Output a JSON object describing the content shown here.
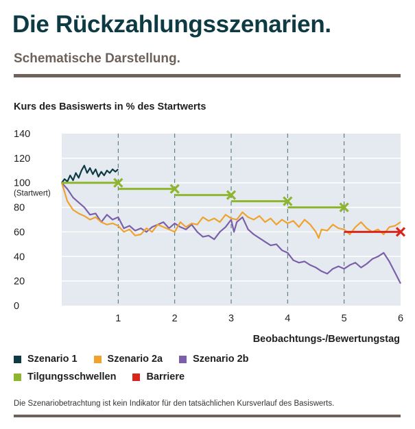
{
  "header": {
    "title": "Die Rückzahlungsszenarien.",
    "subtitle": "Schematische Darstellung."
  },
  "footnote": "Die Szenariobetrachtung ist kein Indikator für den tatsächlichen Kursverlauf des Basiswerts.",
  "chart_data": {
    "type": "line",
    "ylabel": "Kurs des Basiswerts in % des Startwerts",
    "xlabel": "Beobachtungs-/Bewertungstag",
    "xlim": [
      0,
      6
    ],
    "ylim": [
      0,
      140
    ],
    "x_ticks": [
      1,
      2,
      3,
      4,
      5,
      6
    ],
    "y_ticks": [
      0,
      20,
      40,
      60,
      80,
      100,
      120,
      140
    ],
    "start_annotation": "(Startwert)",
    "grid": {
      "horizontal": true,
      "vertical_dashed": true
    },
    "background": "#e4eaef",
    "colors": {
      "szenario1": "#0e3b43",
      "szenario2a": "#f0a22e",
      "szenario2b": "#7b5fa8",
      "tilgung": "#8db52d",
      "barriere": "#d9261c"
    },
    "series": [
      {
        "key": "szenario1",
        "name": "Szenario 1",
        "points": [
          [
            0,
            100
          ],
          [
            0.05,
            103
          ],
          [
            0.1,
            101
          ],
          [
            0.15,
            106
          ],
          [
            0.2,
            102
          ],
          [
            0.25,
            108
          ],
          [
            0.3,
            104
          ],
          [
            0.35,
            110
          ],
          [
            0.4,
            114
          ],
          [
            0.45,
            108
          ],
          [
            0.5,
            112
          ],
          [
            0.55,
            107
          ],
          [
            0.6,
            111
          ],
          [
            0.65,
            105
          ],
          [
            0.7,
            109
          ],
          [
            0.75,
            106
          ],
          [
            0.8,
            110
          ],
          [
            0.85,
            108
          ],
          [
            0.9,
            111
          ],
          [
            0.95,
            109
          ],
          [
            1,
            111
          ]
        ]
      },
      {
        "key": "szenario2a",
        "name": "Szenario 2a",
        "points": [
          [
            0,
            100
          ],
          [
            0.1,
            85
          ],
          [
            0.2,
            78
          ],
          [
            0.3,
            75
          ],
          [
            0.4,
            73
          ],
          [
            0.5,
            70
          ],
          [
            0.6,
            72
          ],
          [
            0.7,
            68
          ],
          [
            0.8,
            66
          ],
          [
            0.9,
            67
          ],
          [
            1,
            65
          ],
          [
            1.1,
            60
          ],
          [
            1.2,
            62
          ],
          [
            1.3,
            57
          ],
          [
            1.4,
            58
          ],
          [
            1.5,
            63
          ],
          [
            1.6,
            60
          ],
          [
            1.7,
            66
          ],
          [
            1.8,
            64
          ],
          [
            1.9,
            62
          ],
          [
            2,
            60
          ],
          [
            2.1,
            68
          ],
          [
            2.2,
            64
          ],
          [
            2.3,
            67
          ],
          [
            2.4,
            66
          ],
          [
            2.5,
            72
          ],
          [
            2.6,
            69
          ],
          [
            2.7,
            71
          ],
          [
            2.8,
            68
          ],
          [
            2.9,
            74
          ],
          [
            3,
            71
          ],
          [
            3.1,
            70
          ],
          [
            3.2,
            76
          ],
          [
            3.3,
            72
          ],
          [
            3.4,
            70
          ],
          [
            3.5,
            73
          ],
          [
            3.6,
            68
          ],
          [
            3.7,
            71
          ],
          [
            3.8,
            66
          ],
          [
            3.9,
            70
          ],
          [
            4,
            67
          ],
          [
            4.1,
            69
          ],
          [
            4.2,
            64
          ],
          [
            4.3,
            70
          ],
          [
            4.4,
            66
          ],
          [
            4.5,
            60
          ],
          [
            4.55,
            55
          ],
          [
            4.6,
            62
          ],
          [
            4.7,
            61
          ],
          [
            4.8,
            66
          ],
          [
            4.9,
            63
          ],
          [
            5,
            62
          ],
          [
            5.1,
            58
          ],
          [
            5.2,
            64
          ],
          [
            5.3,
            68
          ],
          [
            5.4,
            63
          ],
          [
            5.5,
            60
          ],
          [
            5.6,
            62
          ],
          [
            5.7,
            58
          ],
          [
            5.8,
            64
          ],
          [
            5.9,
            65
          ],
          [
            6,
            68
          ]
        ]
      },
      {
        "key": "szenario2b",
        "name": "Szenario 2b",
        "points": [
          [
            0,
            100
          ],
          [
            0.1,
            95
          ],
          [
            0.2,
            88
          ],
          [
            0.3,
            84
          ],
          [
            0.4,
            80
          ],
          [
            0.5,
            74
          ],
          [
            0.6,
            75
          ],
          [
            0.7,
            68
          ],
          [
            0.8,
            74
          ],
          [
            0.9,
            70
          ],
          [
            1,
            72
          ],
          [
            1.1,
            63
          ],
          [
            1.2,
            65
          ],
          [
            1.3,
            61
          ],
          [
            1.4,
            63
          ],
          [
            1.5,
            60
          ],
          [
            1.6,
            64
          ],
          [
            1.7,
            66
          ],
          [
            1.8,
            68
          ],
          [
            1.9,
            63
          ],
          [
            2,
            67
          ],
          [
            2.1,
            64
          ],
          [
            2.2,
            62
          ],
          [
            2.3,
            66
          ],
          [
            2.4,
            60
          ],
          [
            2.5,
            56
          ],
          [
            2.6,
            57
          ],
          [
            2.7,
            54
          ],
          [
            2.8,
            60
          ],
          [
            2.9,
            64
          ],
          [
            3,
            70
          ],
          [
            3.05,
            60
          ],
          [
            3.1,
            68
          ],
          [
            3.2,
            72
          ],
          [
            3.3,
            62
          ],
          [
            3.4,
            58
          ],
          [
            3.5,
            55
          ],
          [
            3.6,
            52
          ],
          [
            3.7,
            49
          ],
          [
            3.8,
            50
          ],
          [
            3.9,
            45
          ],
          [
            4,
            43
          ],
          [
            4.1,
            37
          ],
          [
            4.2,
            35
          ],
          [
            4.3,
            36
          ],
          [
            4.4,
            33
          ],
          [
            4.5,
            31
          ],
          [
            4.6,
            28
          ],
          [
            4.7,
            26
          ],
          [
            4.8,
            30
          ],
          [
            4.9,
            32
          ],
          [
            5,
            30
          ],
          [
            5.1,
            33
          ],
          [
            5.2,
            35
          ],
          [
            5.3,
            31
          ],
          [
            5.4,
            34
          ],
          [
            5.5,
            38
          ],
          [
            5.6,
            40
          ],
          [
            5.7,
            43
          ],
          [
            5.8,
            36
          ],
          [
            5.9,
            27
          ],
          [
            6,
            18
          ]
        ]
      }
    ],
    "tilgungsschwellen": {
      "name": "Tilgungsschwellen",
      "levels": [
        [
          0,
          1,
          100
        ],
        [
          1,
          2,
          95
        ],
        [
          2,
          3,
          90
        ],
        [
          3,
          4,
          85
        ],
        [
          4,
          5,
          80
        ]
      ]
    },
    "barriere": {
      "name": "Barriere",
      "level": 60,
      "from": 5,
      "to": 6
    },
    "legend": [
      [
        "Szenario 1",
        "Szenario 2a",
        "Szenario 2b"
      ],
      [
        "Tilgungsschwellen",
        "Barriere"
      ]
    ]
  }
}
